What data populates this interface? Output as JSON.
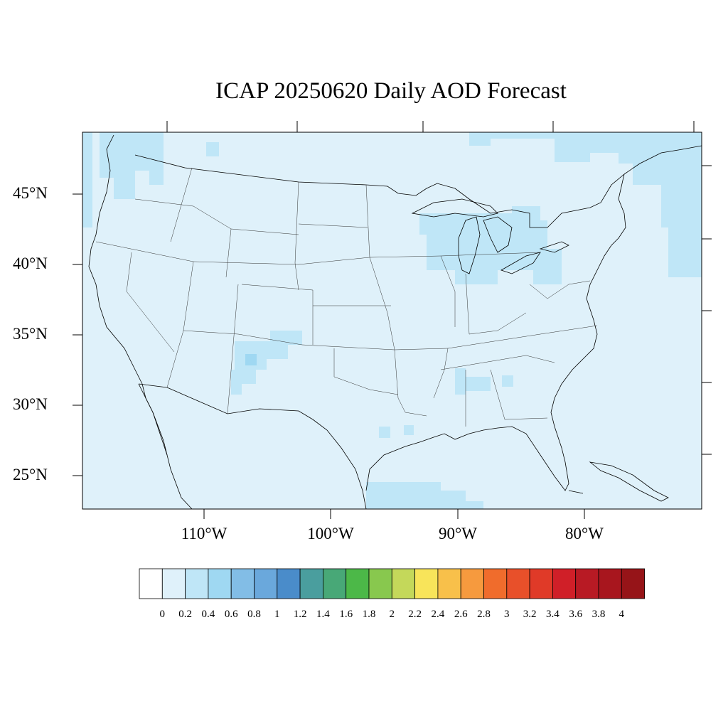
{
  "title": "ICAP 20250620 Daily AOD Forecast",
  "map": {
    "lat_labels": [
      "45°N",
      "40°N",
      "35°N",
      "30°N",
      "25°N"
    ],
    "lon_labels": [
      "110°W",
      "100°W",
      "90°W",
      "80°W"
    ],
    "background_color": "#dff1fa"
  },
  "colorbar": {
    "labels": [
      "0",
      "0.2",
      "0.4",
      "0.6",
      "0.8",
      "1",
      "1.2",
      "1.4",
      "1.6",
      "1.8",
      "2",
      "2.2",
      "2.4",
      "2.6",
      "2.8",
      "3",
      "3.2",
      "3.4",
      "3.6",
      "3.8",
      "4"
    ],
    "colors": [
      "#ffffff",
      "#dff1fa",
      "#bfe6f7",
      "#9fd8f2",
      "#82bde6",
      "#6aa8dc",
      "#4a8cca",
      "#4a9e9e",
      "#48a877",
      "#4cb848",
      "#88c84e",
      "#c4d85a",
      "#f8e45a",
      "#f8c04a",
      "#f69a3e",
      "#f06c2c",
      "#e8502a",
      "#e03a28",
      "#d01f28",
      "#b81a24",
      "#a8161e",
      "#961418"
    ]
  }
}
